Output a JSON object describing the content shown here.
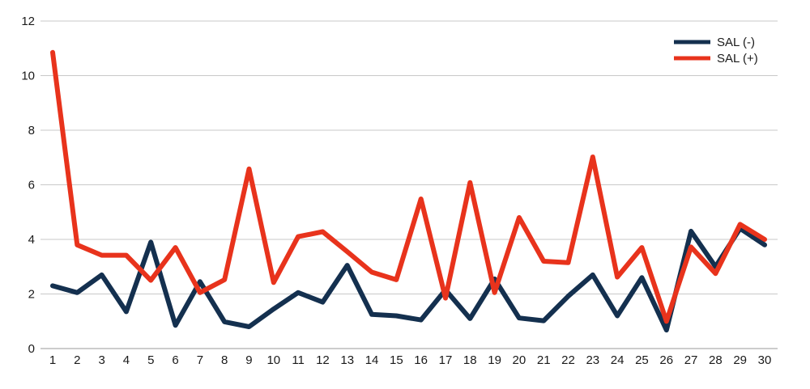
{
  "chart_data": {
    "type": "line",
    "title": "",
    "xlabel": "",
    "ylabel": "",
    "categories": [
      "1",
      "2",
      "3",
      "4",
      "5",
      "6",
      "7",
      "8",
      "9",
      "10",
      "11",
      "12",
      "13",
      "14",
      "15",
      "16",
      "17",
      "18",
      "19",
      "20",
      "21",
      "22",
      "23",
      "24",
      "25",
      "26",
      "27",
      "28",
      "29",
      "30"
    ],
    "ylim": [
      0,
      12
    ],
    "yticks": [
      "0",
      "2",
      "4",
      "6",
      "8",
      "10",
      "12"
    ],
    "grid": true,
    "legend_position": "top-right",
    "series": [
      {
        "name": "SAL (-)",
        "color": "#14304f",
        "values": [
          2.3,
          2.05,
          2.7,
          1.35,
          3.9,
          0.85,
          2.45,
          0.98,
          0.8,
          1.45,
          2.05,
          1.7,
          3.05,
          1.25,
          1.2,
          1.05,
          2.15,
          1.1,
          2.55,
          1.12,
          1.02,
          1.92,
          2.7,
          1.2,
          2.6,
          0.68,
          4.3,
          3.0,
          4.4,
          3.8
        ]
      },
      {
        "name": "SAL (+)",
        "color": "#e8331c",
        "values": [
          10.85,
          3.8,
          3.42,
          3.42,
          2.5,
          3.7,
          2.05,
          2.52,
          6.58,
          2.42,
          4.1,
          4.28,
          3.55,
          2.8,
          2.52,
          5.48,
          1.85,
          6.08,
          2.05,
          4.8,
          3.2,
          3.15,
          7.02,
          2.62,
          3.7,
          1.0,
          3.72,
          2.75,
          4.55,
          4.0
        ]
      }
    ]
  }
}
